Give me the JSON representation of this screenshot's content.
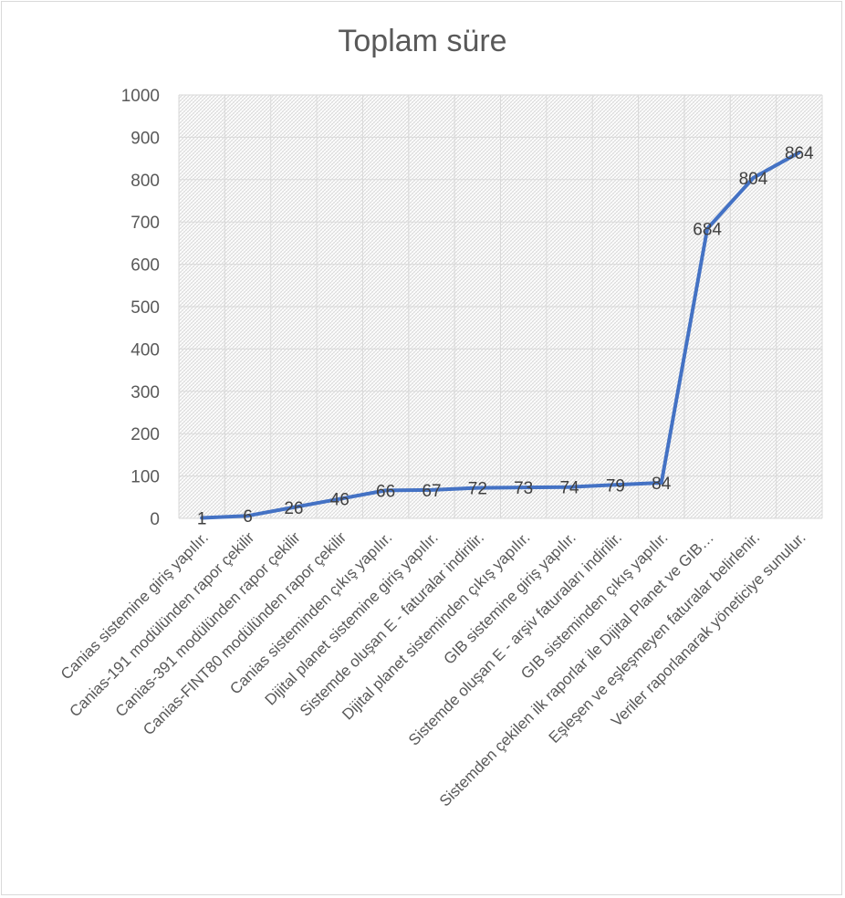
{
  "chart_data": {
    "type": "line",
    "title": "Toplam süre",
    "xlabel": "",
    "ylabel": "",
    "ylim": [
      0,
      1000
    ],
    "yticks": [
      0,
      100,
      200,
      300,
      400,
      500,
      600,
      700,
      800,
      900,
      1000
    ],
    "grid": true,
    "legend": "none",
    "line_color": "#4472c4",
    "categories": [
      "Canias sistemine giriş yapılır.",
      "Canias-191 modülünden rapor çekilir",
      "Canias-391 modülünden rapor çekilir",
      "Canias-FINT80  modülünden rapor çekilir",
      "Canias sisteminden çıkış yapılır.",
      "Dijital planet sistemine giriş yapılır.",
      "Sistemde oluşan E - faturalar indirilir.",
      "Dijital planet sisteminden çıkış yapılır.",
      "GIB sistemine giriş yapılır.",
      "Sistemde oluşan E - arşiv faturaları indirilir.",
      "GIB sisteminden çıkış yapılır.",
      "Sistemden çekilen ilk raporlar ile Dijital Planet ve GIB…",
      "Eşleşen ve eşleşmeyen faturalar belirlenir.",
      "Veriler raporlanarak yöneticiye sunulur."
    ],
    "series": [
      {
        "values": [
          1,
          6,
          26,
          46,
          66,
          67,
          72,
          73,
          74,
          79,
          84,
          684,
          804,
          864
        ]
      }
    ]
  }
}
